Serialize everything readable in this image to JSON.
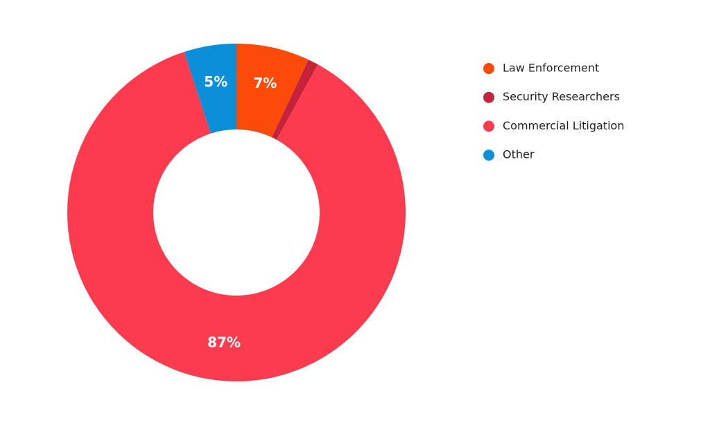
{
  "chart_data": {
    "type": "donut",
    "categories": [
      "Law Enforcement",
      "Security Researchers",
      "Commercial Litigation",
      "Other"
    ],
    "values": [
      7,
      1,
      87,
      5
    ],
    "value_labels": [
      "7%",
      null,
      "87%",
      "5%"
    ],
    "colors": [
      "#fc4a0a",
      "#c4233a",
      "#fc3c4e",
      "#0a8fd8"
    ],
    "legend": "right"
  }
}
